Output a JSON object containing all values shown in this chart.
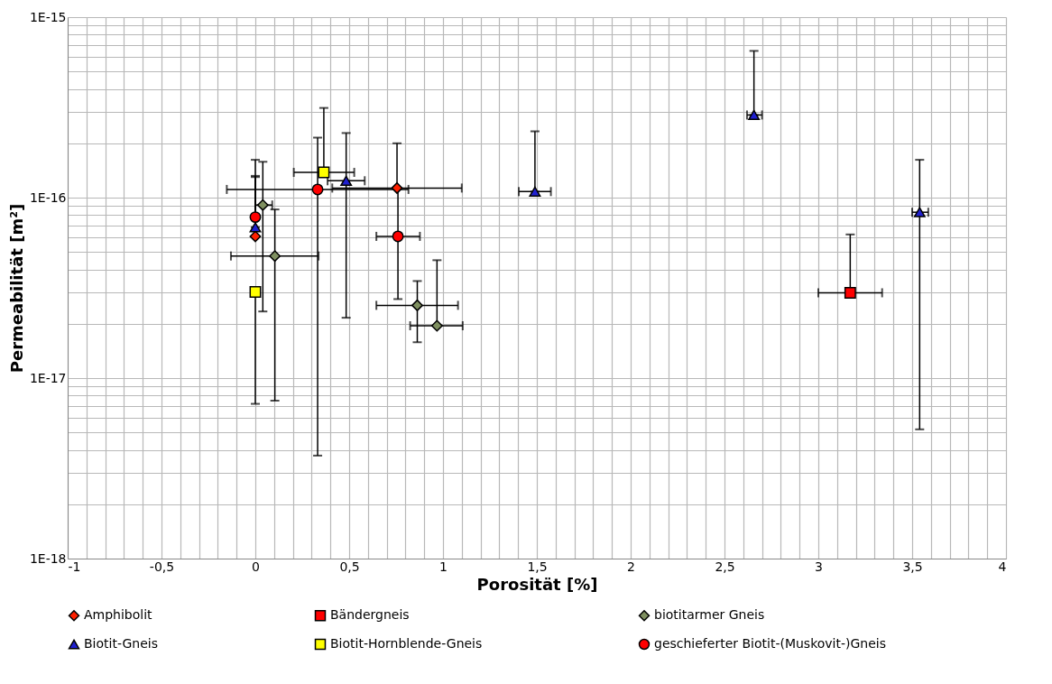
{
  "chart_data": {
    "type": "scatter",
    "xlabel": "Porosität [%]",
    "ylabel": "Permeabilität [m²]",
    "log": "y",
    "grid": true,
    "legend": "bottom",
    "xlim": [
      -1,
      4
    ],
    "ylim": [
      1e-18,
      1e-15
    ],
    "xticks": [
      {
        "value": -1,
        "label": "-1"
      },
      {
        "value": -0.9,
        "label": null
      },
      {
        "value": -0.8,
        "label": null
      },
      {
        "value": -0.7,
        "label": null
      },
      {
        "value": -0.6,
        "label": null
      },
      {
        "value": -0.5,
        "label": "-0,5"
      },
      {
        "value": -0.4,
        "label": null
      },
      {
        "value": -0.3,
        "label": null
      },
      {
        "value": -0.2,
        "label": null
      },
      {
        "value": -0.1,
        "label": null
      },
      {
        "value": 0,
        "label": "0"
      },
      {
        "value": 0.1,
        "label": null
      },
      {
        "value": 0.2,
        "label": null
      },
      {
        "value": 0.3,
        "label": null
      },
      {
        "value": 0.4,
        "label": null
      },
      {
        "value": 0.5,
        "label": "0,5"
      },
      {
        "value": 0.6,
        "label": null
      },
      {
        "value": 0.7,
        "label": null
      },
      {
        "value": 0.8,
        "label": null
      },
      {
        "value": 0.9,
        "label": null
      },
      {
        "value": 1,
        "label": "1"
      },
      {
        "value": 1.1,
        "label": null
      },
      {
        "value": 1.2,
        "label": null
      },
      {
        "value": 1.3,
        "label": null
      },
      {
        "value": 1.4,
        "label": null
      },
      {
        "value": 1.5,
        "label": "1,5"
      },
      {
        "value": 1.6,
        "label": null
      },
      {
        "value": 1.7,
        "label": null
      },
      {
        "value": 1.8,
        "label": null
      },
      {
        "value": 1.9,
        "label": null
      },
      {
        "value": 2,
        "label": "2"
      },
      {
        "value": 2.1,
        "label": null
      },
      {
        "value": 2.2,
        "label": null
      },
      {
        "value": 2.3,
        "label": null
      },
      {
        "value": 2.4,
        "label": null
      },
      {
        "value": 2.5,
        "label": "2,5"
      },
      {
        "value": 2.6,
        "label": null
      },
      {
        "value": 2.7,
        "label": null
      },
      {
        "value": 2.8,
        "label": null
      },
      {
        "value": 2.9,
        "label": null
      },
      {
        "value": 3,
        "label": "3"
      },
      {
        "value": 3.1,
        "label": null
      },
      {
        "value": 3.2,
        "label": null
      },
      {
        "value": 3.3,
        "label": null
      },
      {
        "value": 3.4,
        "label": null
      },
      {
        "value": 3.5,
        "label": "3,5"
      },
      {
        "value": 3.6,
        "label": null
      },
      {
        "value": 3.7,
        "label": null
      },
      {
        "value": 3.8,
        "label": null
      },
      {
        "value": 3.9,
        "label": null
      },
      {
        "value": 4,
        "label": "4"
      }
    ],
    "yticks": [
      {
        "value": 1e-18,
        "label": "1E-18"
      },
      {
        "value": 2e-18,
        "label": null
      },
      {
        "value": 3e-18,
        "label": null
      },
      {
        "value": 4e-18,
        "label": null
      },
      {
        "value": 5e-18,
        "label": null
      },
      {
        "value": 6e-18,
        "label": null
      },
      {
        "value": 7e-18,
        "label": null
      },
      {
        "value": 8e-18,
        "label": null
      },
      {
        "value": 9e-18,
        "label": null
      },
      {
        "value": 1e-17,
        "label": "1E-17"
      },
      {
        "value": 2e-17,
        "label": null
      },
      {
        "value": 3e-17,
        "label": null
      },
      {
        "value": 4e-17,
        "label": null
      },
      {
        "value": 5e-17,
        "label": null
      },
      {
        "value": 6e-17,
        "label": null
      },
      {
        "value": 7e-17,
        "label": null
      },
      {
        "value": 8e-17,
        "label": null
      },
      {
        "value": 9e-17,
        "label": null
      },
      {
        "value": 1e-16,
        "label": "1E-16"
      },
      {
        "value": 2e-16,
        "label": null
      },
      {
        "value": 3e-16,
        "label": null
      },
      {
        "value": 4e-16,
        "label": null
      },
      {
        "value": 5e-16,
        "label": null
      },
      {
        "value": 6e-16,
        "label": null
      },
      {
        "value": 7e-16,
        "label": null
      },
      {
        "value": 8e-16,
        "label": null
      },
      {
        "value": 9e-16,
        "label": null
      },
      {
        "value": 1e-15,
        "label": "1E-15"
      }
    ],
    "series": [
      {
        "name": "Amphibolit",
        "color": "#ff2000",
        "marker": "diamond",
        "x": [
          0,
          0.755
        ],
        "values": [
          6.1e-17,
          1.13e-16
        ],
        "errors": [
          [
            6.1e-17,
            1.3e-16
          ],
          [
            1.13e-16,
            2e-16
          ]
        ],
        "xerrors": [
          null,
          [
            0.41,
            1.1
          ]
        ]
      },
      {
        "name": "Bändergneis",
        "color": "#ff0000",
        "marker": "square",
        "x": [
          3.17
        ],
        "values": [
          2.97e-17
        ],
        "errors": [
          [
            2.97e-17,
            6.25e-17
          ]
        ],
        "xerrors": [
          [
            3.0,
            3.34
          ]
        ]
      },
      {
        "name": "biotitarmer Gneis",
        "color": "#7f9060",
        "marker": "diamond",
        "x": [
          0.04,
          0.104,
          0.863,
          0.968
        ],
        "values": [
          9.1e-17,
          4.75e-17,
          2.53e-17,
          1.95e-17
        ],
        "errors": [
          [
            2.34e-17,
            1.58e-16
          ],
          [
            7.5e-18,
            8.6e-17
          ],
          [
            1.58e-17,
            3.45e-17
          ],
          [
            1.95e-17,
            4.5e-17
          ]
        ],
        "xerrors": [
          [
            0,
            0.09
          ],
          [
            -0.13,
            0.337
          ],
          [
            0.645,
            1.08
          ],
          [
            0.825,
            1.105
          ]
        ]
      },
      {
        "name": "Biotit-Gneis",
        "color": "#2020d0",
        "marker": "triangle",
        "x": [
          0,
          0.484,
          1.49,
          2.657,
          3.54
        ],
        "values": [
          6.85e-17,
          1.24e-16,
          1.08e-16,
          2.87e-16,
          8.3e-17
        ],
        "errors": [
          [
            6.85e-17,
            1.32e-16
          ],
          [
            2.16e-17,
            2.28e-16
          ],
          [
            1.08e-16,
            2.33e-16
          ],
          [
            2.87e-16,
            6.5e-16
          ],
          [
            5.2e-18,
            1.62e-16
          ]
        ],
        "xerrors": [
          null,
          [
            0.385,
            0.583
          ],
          [
            1.404,
            1.575
          ],
          [
            2.62,
            2.7
          ],
          [
            3.5,
            3.586
          ]
        ]
      },
      {
        "name": "Biotit-Hornblende-Gneis",
        "color": "#ffff00",
        "marker": "square",
        "x": [
          0,
          0.365
        ],
        "values": [
          3e-17,
          1.38e-16
        ],
        "errors": [
          [
            7.2e-18,
            3e-17
          ],
          [
            1.38e-16,
            3.14e-16
          ]
        ],
        "xerrors": [
          null,
          [
            0.205,
            0.527
          ]
        ]
      },
      {
        "name": "geschieferter Biotit-(Muskovit-)Gneis",
        "color": "#ff0000",
        "marker": "circle",
        "x": [
          0,
          0.332,
          0.76
        ],
        "values": [
          7.8e-17,
          1.11e-16,
          6.1e-17
        ],
        "errors": [
          [
            7.8e-17,
            1.62e-16
          ],
          [
            3.72e-18,
            2.15e-16
          ],
          [
            2.74e-17,
            1.13e-16
          ]
        ],
        "xerrors": [
          null,
          [
            -0.152,
            0.816
          ],
          [
            0.645,
            0.877
          ]
        ]
      }
    ]
  }
}
